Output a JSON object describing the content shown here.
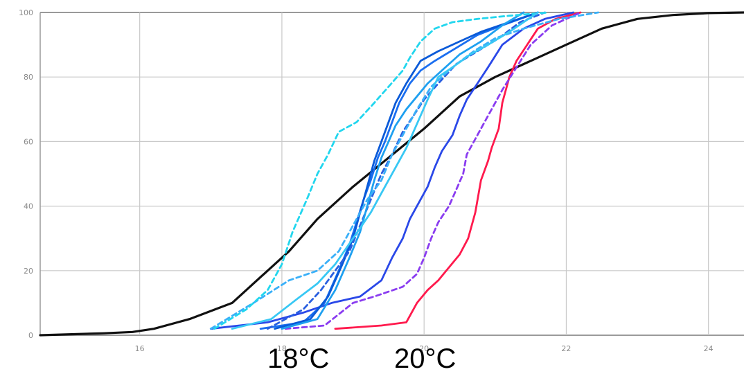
{
  "chart_data": {
    "type": "line",
    "title": "",
    "xlabel": "",
    "ylabel": "",
    "xlim": [
      14.6,
      24.5
    ],
    "ylim": [
      0,
      100
    ],
    "x_ticks": [
      16,
      18,
      20,
      22,
      24
    ],
    "y_ticks": [
      0,
      20,
      40,
      60,
      80,
      100
    ],
    "grid": true,
    "annotations": [
      "18°C",
      "20°C"
    ],
    "series": [
      {
        "color": "#111111",
        "dashed": false,
        "x": [
          14.6,
          15.5,
          15.9,
          16.2,
          16.7,
          17.3,
          17.7,
          18.1,
          18.5,
          19.0,
          19.5,
          20.0,
          20.5,
          21.0,
          21.5,
          22.0,
          22.5,
          23.0,
          23.5,
          24.0,
          24.5
        ],
        "y": [
          0,
          0.6,
          1,
          2,
          5,
          10,
          18,
          26,
          36,
          46,
          55,
          64,
          74,
          80,
          85,
          90,
          95,
          98,
          99.2,
          99.8,
          100
        ]
      },
      {
        "color": "#ff1a4d",
        "dashed": false,
        "x": [
          18.75,
          19.4,
          19.75,
          19.9,
          20.05,
          20.2,
          20.35,
          20.5,
          20.62,
          20.72,
          20.8,
          20.9,
          20.95,
          21.05,
          21.1,
          21.2,
          21.3,
          21.45,
          21.6,
          21.85,
          22.2
        ],
        "y": [
          2,
          3,
          4,
          10,
          14,
          17,
          21,
          25,
          30,
          38,
          48,
          54,
          58,
          64,
          72,
          80,
          85,
          90,
          95,
          98,
          100
        ]
      },
      {
        "color": "#8a3cf0",
        "dashed": true,
        "x": [
          18.05,
          18.6,
          19.0,
          19.3,
          19.7,
          19.9,
          20.0,
          20.1,
          20.2,
          20.35,
          20.45,
          20.55,
          20.6,
          20.75,
          20.85,
          20.95,
          21.1,
          21.3,
          21.5,
          21.8,
          22.2
        ],
        "y": [
          2,
          3,
          10,
          12,
          15,
          19,
          24,
          30,
          35,
          40,
          45,
          50,
          56,
          62,
          66,
          70,
          76,
          83,
          90,
          96,
          100
        ]
      },
      {
        "color": "#2a48e8",
        "dashed": false,
        "x": [
          17.0,
          17.8,
          18.3,
          18.7,
          19.1,
          19.4,
          19.55,
          19.7,
          19.8,
          19.9,
          20.05,
          20.15,
          20.25,
          20.4,
          20.5,
          20.6,
          20.75,
          20.9,
          21.1,
          21.4,
          21.7,
          22.1
        ],
        "y": [
          2,
          4,
          7,
          10,
          12,
          17,
          24,
          30,
          36,
          40,
          46,
          52,
          57,
          62,
          68,
          73,
          78,
          83,
          90,
          95,
          98,
          100
        ]
      },
      {
        "color": "#1a6ef0",
        "dashed": false,
        "x": [
          17.7,
          18.3,
          18.6,
          18.8,
          18.95,
          19.05,
          19.15,
          19.25,
          19.35,
          19.45,
          19.55,
          19.65,
          19.8,
          19.95,
          20.15,
          20.45,
          20.75,
          21.1,
          21.6
        ],
        "y": [
          2,
          4,
          10,
          20,
          28,
          35,
          42,
          48,
          55,
          60,
          66,
          72,
          78,
          82,
          85,
          89,
          93,
          96,
          100
        ]
      },
      {
        "color": "#0a5ad8",
        "dashed": false,
        "x": [
          17.9,
          18.4,
          18.65,
          18.85,
          19.0,
          19.1,
          19.2,
          19.3,
          19.4,
          19.5,
          19.6,
          19.75,
          19.95,
          20.2,
          20.5,
          20.8,
          21.2,
          21.6
        ],
        "y": [
          2,
          5,
          12,
          22,
          30,
          38,
          46,
          54,
          60,
          66,
          72,
          78,
          85,
          88,
          91,
          94,
          97,
          100
        ]
      },
      {
        "color": "#2a5fe0",
        "dashed": true,
        "x": [
          17.8,
          18.3,
          18.55,
          18.75,
          18.95,
          19.1,
          19.25,
          19.4,
          19.55,
          19.7,
          19.85,
          20.0,
          20.2,
          20.45,
          20.75,
          21.05,
          21.35,
          21.7
        ],
        "y": [
          2,
          8,
          14,
          20,
          26,
          34,
          42,
          50,
          56,
          63,
          68,
          73,
          78,
          84,
          88,
          92,
          97,
          100
        ]
      },
      {
        "color": "#1ea0f0",
        "dashed": false,
        "x": [
          18.0,
          18.5,
          18.75,
          18.95,
          19.1,
          19.2,
          19.3,
          19.4,
          19.5,
          19.6,
          19.75,
          19.9,
          20.05,
          20.25,
          20.5,
          20.8,
          21.1,
          21.4
        ],
        "y": [
          2,
          5,
          14,
          24,
          32,
          40,
          48,
          55,
          60,
          65,
          70,
          74,
          78,
          82,
          87,
          91,
          96,
          100
        ]
      },
      {
        "color": "#3ab0f8",
        "dashed": true,
        "x": [
          17.0,
          17.6,
          18.1,
          18.5,
          18.8,
          19.0,
          19.2,
          19.4,
          19.55,
          19.7,
          19.9,
          20.1,
          20.4,
          20.7,
          21.0,
          21.4,
          21.9,
          22.45
        ],
        "y": [
          2,
          10,
          17,
          20,
          26,
          34,
          42,
          48,
          56,
          62,
          70,
          77,
          83,
          88,
          92,
          95,
          98,
          100
        ]
      },
      {
        "color": "#22d6ee",
        "dashed": true,
        "x": [
          17.05,
          17.5,
          17.8,
          18.0,
          18.15,
          18.35,
          18.5,
          18.65,
          18.8,
          19.05,
          19.3,
          19.5,
          19.7,
          19.8,
          19.95,
          20.15,
          20.4,
          20.75,
          21.2,
          21.75
        ],
        "y": [
          2,
          8,
          14,
          22,
          32,
          42,
          50,
          56,
          63,
          66,
          72,
          77,
          82,
          86,
          91,
          95,
          97,
          98,
          99,
          100
        ]
      },
      {
        "color": "#38c8f4",
        "dashed": false,
        "x": [
          17.3,
          17.85,
          18.2,
          18.5,
          18.75,
          19.0,
          19.25,
          19.45,
          19.6,
          19.75,
          19.85,
          19.95,
          20.05,
          20.2,
          20.4,
          20.65,
          20.9,
          21.2,
          21.6
        ],
        "y": [
          2,
          5,
          11,
          16,
          22,
          30,
          38,
          46,
          52,
          58,
          63,
          68,
          73,
          80,
          83,
          87,
          90,
          94,
          100
        ]
      }
    ]
  }
}
